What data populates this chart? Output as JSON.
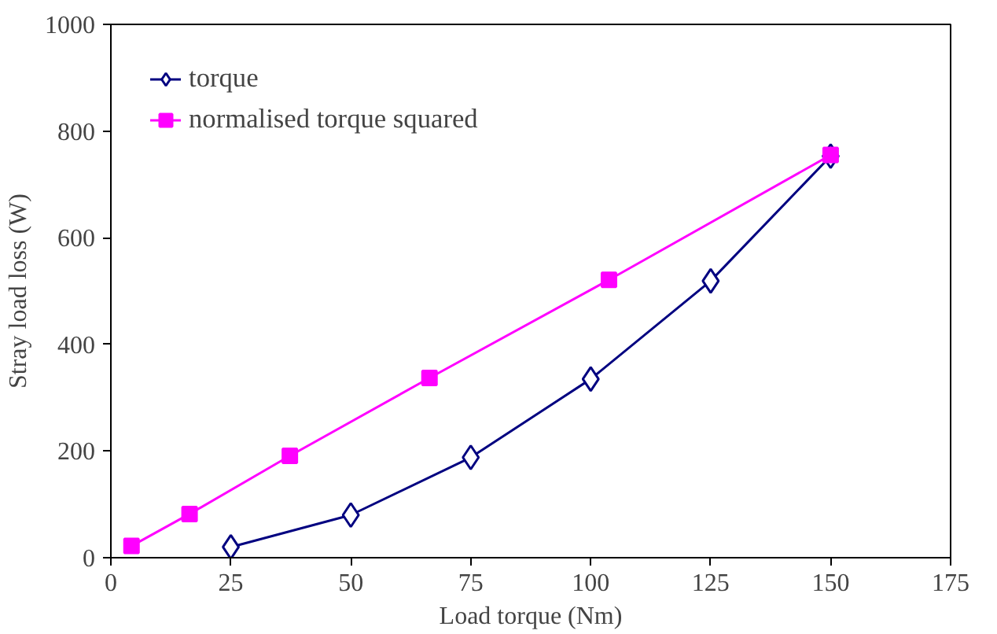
{
  "chart_data": {
    "type": "line",
    "xlabel": "Load torque (Nm)",
    "ylabel": "Stray load loss (W)",
    "xlim": [
      0,
      175
    ],
    "xticks": [
      0,
      25,
      50,
      75,
      100,
      125,
      150,
      175
    ],
    "ylim": [
      0,
      1000
    ],
    "yticks": [
      0,
      200,
      400,
      600,
      800,
      1000
    ],
    "grid": false,
    "legend": "top left",
    "series": [
      {
        "name": "torque",
        "color": "#000080",
        "marker": "diamond",
        "x": [
          25,
          50,
          75,
          100,
          125,
          150
        ],
        "values": [
          20,
          80,
          188,
          335,
          519,
          753
        ]
      },
      {
        "name": "normalised torque squared",
        "color": "#ff00ff",
        "marker": "square",
        "x": [
          4.3,
          16.4,
          37.3,
          66.4,
          103.8,
          150
        ],
        "values": [
          22,
          82,
          191,
          337,
          521,
          755
        ]
      }
    ]
  }
}
